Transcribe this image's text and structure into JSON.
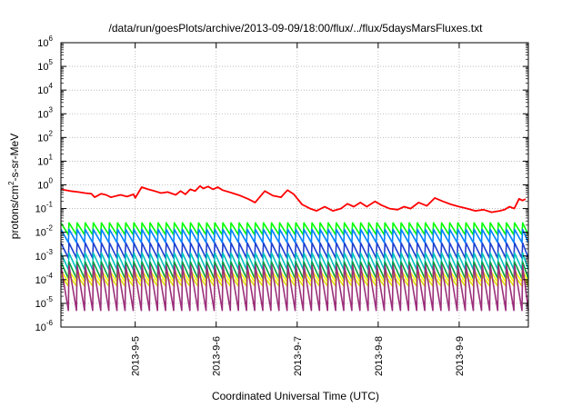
{
  "chart_data": {
    "type": "line",
    "title": "/data/run/goesPlots/archive/2013-09-09/18:00/flux/../flux/5daysMarsFluxes.txt",
    "xlabel": "Coordinated Universal Time (UTC)",
    "ylabel_parts": [
      "protons/cm",
      "2",
      "-s-sr-MeV"
    ],
    "yscale": "log",
    "ylim": [
      1e-06,
      1000000.0
    ],
    "xlim": [
      "2013-09-04 02:00",
      "2013-09-09 20:30"
    ],
    "grid": true,
    "legend": "none",
    "y_tick_labels": [
      {
        "base": "10",
        "exp": "-6"
      },
      {
        "base": "10",
        "exp": "-5"
      },
      {
        "base": "10",
        "exp": "-4"
      },
      {
        "base": "10",
        "exp": "-3"
      },
      {
        "base": "10",
        "exp": "-2"
      },
      {
        "base": "10",
        "exp": "-1"
      },
      {
        "base": "10",
        "exp": "0"
      },
      {
        "base": "10",
        "exp": "1"
      },
      {
        "base": "10",
        "exp": "2"
      },
      {
        "base": "10",
        "exp": "3"
      },
      {
        "base": "10",
        "exp": "4"
      },
      {
        "base": "10",
        "exp": "5"
      },
      {
        "base": "10",
        "exp": "6"
      }
    ],
    "x_ticks": [
      {
        "label": "2013-9-5",
        "day": 1.0
      },
      {
        "label": "2013-9-6",
        "day": 2.0
      },
      {
        "label": "2013-9-7",
        "day": 3.0
      },
      {
        "label": "2013-9-8",
        "day": 4.0
      },
      {
        "label": "2013-9-9",
        "day": 5.0
      }
    ],
    "series": [
      {
        "color": "#ff0000",
        "points": [
          [
            0.08,
            0.65
          ],
          [
            0.2,
            0.55
          ],
          [
            0.3,
            0.5
          ],
          [
            0.38,
            0.45
          ],
          [
            0.46,
            0.42
          ],
          [
            0.5,
            0.3
          ],
          [
            0.58,
            0.42
          ],
          [
            0.64,
            0.38
          ],
          [
            0.7,
            0.3
          ],
          [
            0.82,
            0.38
          ],
          [
            0.9,
            0.32
          ],
          [
            0.98,
            0.4
          ],
          [
            1.0,
            0.28
          ],
          [
            1.08,
            0.8
          ],
          [
            1.16,
            0.65
          ],
          [
            1.24,
            0.55
          ],
          [
            1.32,
            0.45
          ],
          [
            1.4,
            0.5
          ],
          [
            1.5,
            0.38
          ],
          [
            1.56,
            0.55
          ],
          [
            1.62,
            0.4
          ],
          [
            1.68,
            0.65
          ],
          [
            1.74,
            0.55
          ],
          [
            1.8,
            0.9
          ],
          [
            1.84,
            0.7
          ],
          [
            1.9,
            0.85
          ],
          [
            1.96,
            0.65
          ],
          [
            2.02,
            0.8
          ],
          [
            2.08,
            0.6
          ],
          [
            2.2,
            0.45
          ],
          [
            2.3,
            0.35
          ],
          [
            2.4,
            0.25
          ],
          [
            2.48,
            0.18
          ],
          [
            2.6,
            0.55
          ],
          [
            2.7,
            0.35
          ],
          [
            2.8,
            0.3
          ],
          [
            2.88,
            0.6
          ],
          [
            2.96,
            0.4
          ],
          [
            3.06,
            0.15
          ],
          [
            3.16,
            0.1
          ],
          [
            3.24,
            0.08
          ],
          [
            3.34,
            0.12
          ],
          [
            3.44,
            0.08
          ],
          [
            3.54,
            0.1
          ],
          [
            3.62,
            0.16
          ],
          [
            3.7,
            0.12
          ],
          [
            3.78,
            0.18
          ],
          [
            3.86,
            0.12
          ],
          [
            3.96,
            0.2
          ],
          [
            4.04,
            0.14
          ],
          [
            4.14,
            0.1
          ],
          [
            4.24,
            0.09
          ],
          [
            4.32,
            0.12
          ],
          [
            4.4,
            0.1
          ],
          [
            4.5,
            0.18
          ],
          [
            4.6,
            0.13
          ],
          [
            4.7,
            0.28
          ],
          [
            4.8,
            0.2
          ],
          [
            4.9,
            0.15
          ],
          [
            5.0,
            0.12
          ],
          [
            5.1,
            0.1
          ],
          [
            5.2,
            0.08
          ],
          [
            5.3,
            0.09
          ],
          [
            5.4,
            0.07
          ],
          [
            5.5,
            0.08
          ],
          [
            5.56,
            0.09
          ],
          [
            5.62,
            0.12
          ],
          [
            5.68,
            0.1
          ],
          [
            5.74,
            0.26
          ],
          [
            5.78,
            0.22
          ],
          [
            5.82,
            0.25
          ]
        ]
      },
      {
        "color": "#00ff00",
        "mid": 0.014,
        "amp": 0.25
      },
      {
        "color": "#0080ff",
        "mid": 0.007,
        "amp": 0.28
      },
      {
        "color": "#1f3fd1",
        "mid": 0.0017,
        "amp": 0.32
      },
      {
        "color": "#00c0c0",
        "mid": 0.0006,
        "amp": 0.35
      },
      {
        "color": "#00a040",
        "mid": 0.00025,
        "amp": 0.35
      },
      {
        "color": "#ffff00",
        "mid": 0.00014,
        "amp": 0.25
      },
      {
        "color": "#e0e000",
        "mid": 9e-05,
        "amp": 0.22
      },
      {
        "color": "#9b2f7a",
        "mid": 4.5e-05,
        "amp": 0.95
      }
    ]
  }
}
